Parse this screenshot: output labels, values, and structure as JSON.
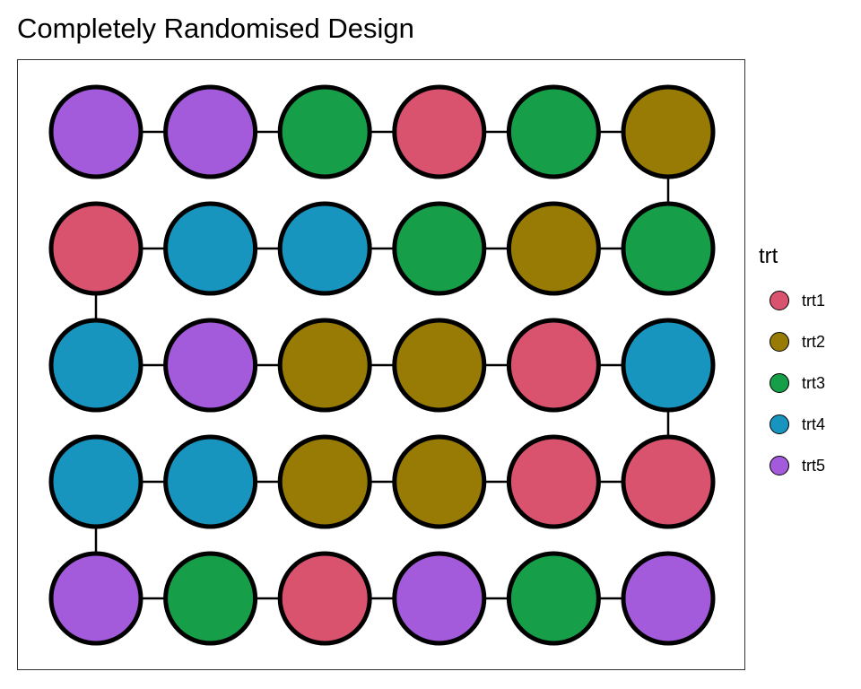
{
  "title": "Completely Randomised Design",
  "legend": {
    "title": "trt",
    "items": [
      {
        "label": "trt1",
        "color": "#d9536f"
      },
      {
        "label": "trt2",
        "color": "#977b05"
      },
      {
        "label": "trt3",
        "color": "#169e49"
      },
      {
        "label": "trt4",
        "color": "#1895bf"
      },
      {
        "label": "trt5",
        "color": "#a45bdb"
      }
    ]
  },
  "layout": {
    "rows": 5,
    "cols": 6,
    "path": "serpentine",
    "plots": [
      [
        "trt5",
        "trt5",
        "trt3",
        "trt1",
        "trt3",
        "trt2"
      ],
      [
        "trt1",
        "trt4",
        "trt4",
        "trt3",
        "trt2",
        "trt3"
      ],
      [
        "trt4",
        "trt5",
        "trt2",
        "trt2",
        "trt1",
        "trt4"
      ],
      [
        "trt4",
        "trt4",
        "trt2",
        "trt2",
        "trt1",
        "trt1"
      ],
      [
        "trt5",
        "trt3",
        "trt1",
        "trt5",
        "trt3",
        "trt5"
      ]
    ]
  }
}
